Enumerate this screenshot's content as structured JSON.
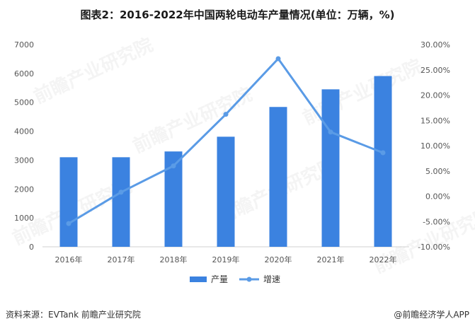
{
  "title": "图表2：2016-2022年中国两轮电动车产量情况(单位：万辆，%)",
  "source": "资料来源：EVTank 前瞻产业研究院",
  "brand": "@前瞻经济学人APP",
  "watermark": "前瞻产业研究院",
  "colors": {
    "bar": "#3b82e0",
    "line": "#5a9be6"
  },
  "chart_data": {
    "type": "bar",
    "categories": [
      "2016年",
      "2017年",
      "2018年",
      "2019年",
      "2020年",
      "2021年",
      "2022年"
    ],
    "series": [
      {
        "name": "产量",
        "type": "bar",
        "axis": "left",
        "values": [
          3100,
          3100,
          3300,
          3810,
          4840,
          5450,
          5910
        ]
      },
      {
        "name": "增速",
        "type": "line",
        "axis": "right",
        "values": [
          -5.4,
          0.8,
          6.0,
          16.2,
          27.2,
          12.7,
          8.6
        ]
      }
    ],
    "y_left": {
      "min": 0,
      "max": 7000,
      "step": 1000,
      "ticks": [
        "0",
        "1000",
        "2000",
        "3000",
        "4000",
        "5000",
        "6000",
        "7000"
      ]
    },
    "y_right": {
      "min": -10,
      "max": 30,
      "step": 5,
      "ticks": [
        "-10.00%",
        "-5.00%",
        "0.00%",
        "5.00%",
        "10.00%",
        "15.00%",
        "20.00%",
        "25.00%",
        "30.00%"
      ]
    },
    "grid": false,
    "legend_position": "bottom"
  }
}
